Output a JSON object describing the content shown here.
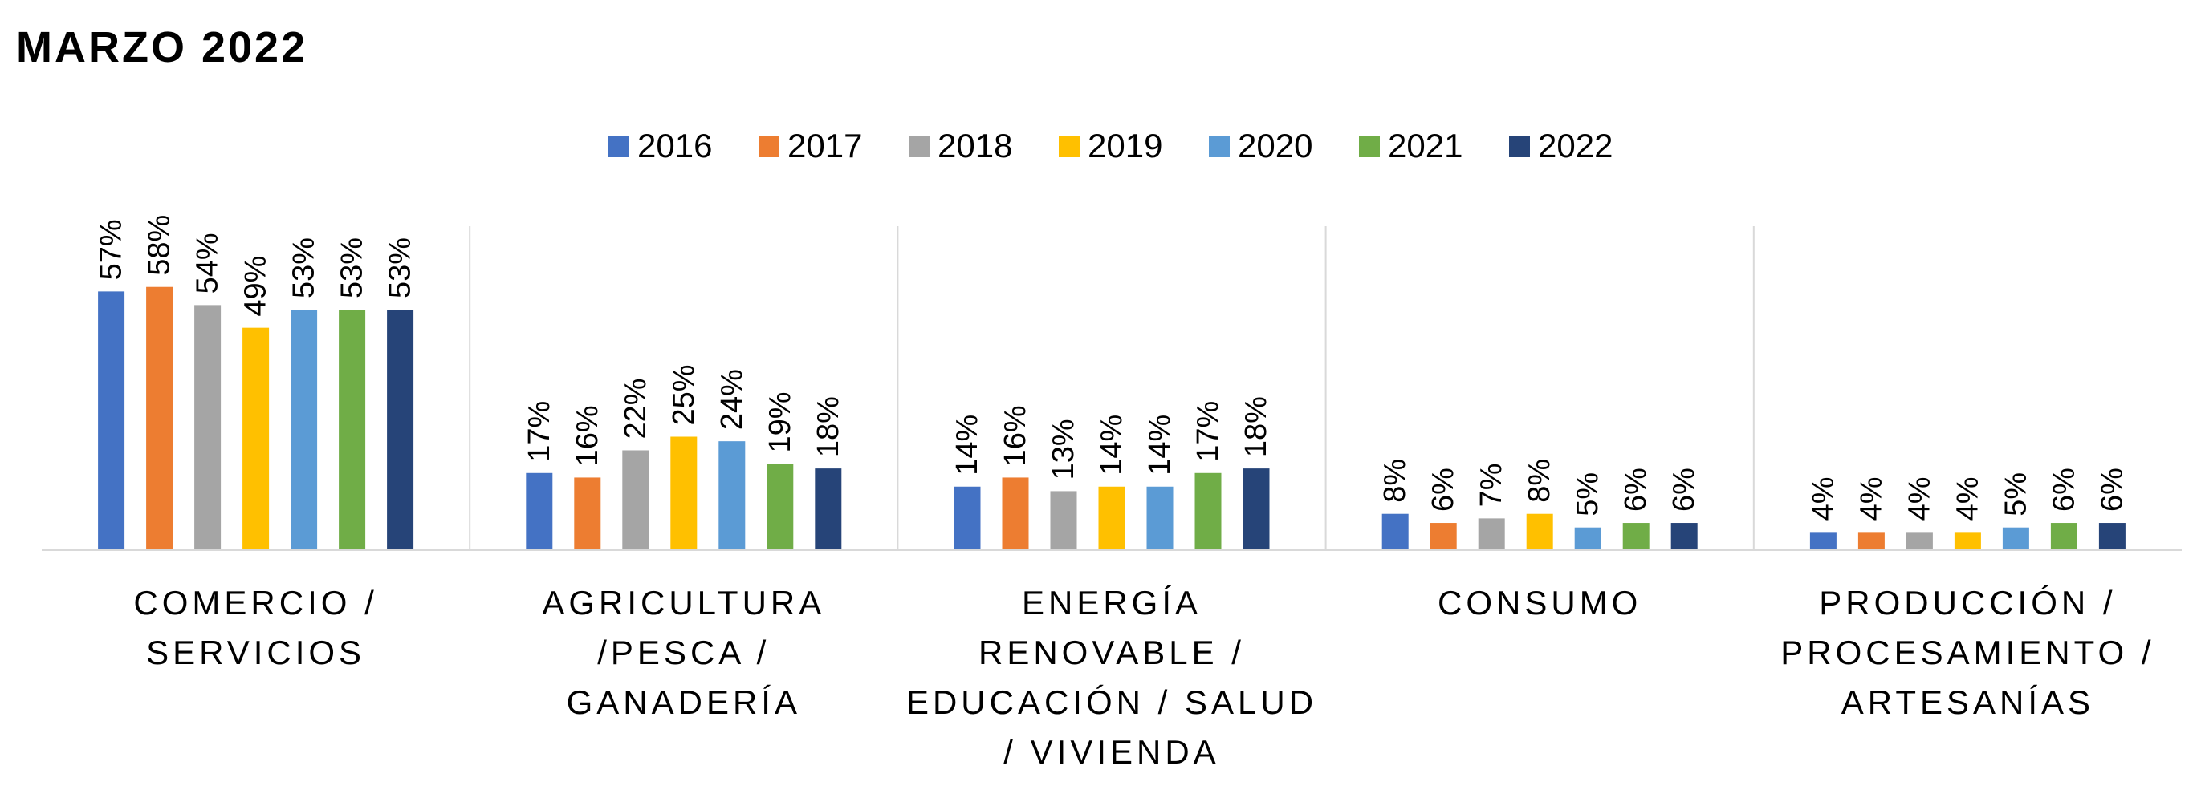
{
  "title": "MARZO 2022",
  "chart_data": {
    "type": "bar",
    "title": "MARZO 2022",
    "xlabel": "",
    "ylabel": "",
    "ylim": [
      0,
      0.6
    ],
    "grid": false,
    "legend_position": "top",
    "value_format": "percent",
    "categories": [
      {
        "lines": [
          "COMERCIO /",
          "SERVICIOS"
        ]
      },
      {
        "lines": [
          "AGRICULTURA",
          "/PESCA /",
          "GANADERÍA"
        ]
      },
      {
        "lines": [
          "ENERGÍA",
          "RENOVABLE /",
          "EDUCACIÓN / SALUD",
          "/ VIVIENDA"
        ]
      },
      {
        "lines": [
          "CONSUMO"
        ]
      },
      {
        "lines": [
          "PRODUCCIÓN /",
          "PROCESAMIENTO /",
          "ARTESANÍAS"
        ]
      }
    ],
    "series": [
      {
        "name": "2016",
        "color": "#4472C4",
        "values": [
          57,
          17,
          14,
          8,
          4
        ],
        "labels": [
          "57%",
          "17%",
          "14%",
          "8%",
          "4%"
        ]
      },
      {
        "name": "2017",
        "color": "#ED7D31",
        "values": [
          58,
          16,
          16,
          6,
          4
        ],
        "labels": [
          "58%",
          "16%",
          "16%",
          "6%",
          "4%"
        ]
      },
      {
        "name": "2018",
        "color": "#A5A5A5",
        "values": [
          54,
          22,
          13,
          7,
          4
        ],
        "labels": [
          "54%",
          "22%",
          "13%",
          "7%",
          "4%"
        ]
      },
      {
        "name": "2019",
        "color": "#FFC000",
        "values": [
          49,
          25,
          14,
          8,
          4
        ],
        "labels": [
          "49%",
          "25%",
          "14%",
          "8%",
          "4%"
        ]
      },
      {
        "name": "2020",
        "color": "#5B9BD5",
        "values": [
          53,
          24,
          14,
          5,
          5
        ],
        "labels": [
          "53%",
          "24%",
          "14%",
          "5%",
          "5%"
        ]
      },
      {
        "name": "2021",
        "color": "#70AD47",
        "values": [
          53,
          19,
          17,
          6,
          6
        ],
        "labels": [
          "53%",
          "19%",
          "17%",
          "6%",
          "6%"
        ]
      },
      {
        "name": "2022",
        "color": "#264478",
        "values": [
          53,
          18,
          18,
          6,
          6
        ],
        "labels": [
          "53%",
          "18%",
          "18%",
          "6%",
          "6%"
        ]
      }
    ]
  }
}
